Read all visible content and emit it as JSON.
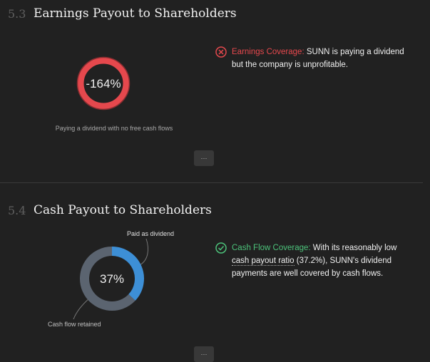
{
  "sections": [
    {
      "number": "5.3",
      "title": "Earnings Payout to Shareholders",
      "ratio": {
        "value": -164,
        "label": "-164%"
      },
      "caption": "Paying a dividend with no free cash flows",
      "button": "···",
      "status": {
        "label": "Earnings Coverage:",
        "text": "SUNN is paying a dividend but the company is unprofitable."
      }
    },
    {
      "number": "5.4",
      "title": "Cash Payout to Shareholders",
      "ratio": {
        "value": 37,
        "label": "37%"
      },
      "paid_label": "Paid as dividend",
      "retained_label": "Cash flow retained",
      "button": "···",
      "status": {
        "label": "Cash Flow Coverage:",
        "text_before": "With its reasonably low",
        "link": "cash payout ratio",
        "text_after": "(37.2%), SUNN's dividend payments are well covered by cash flows."
      }
    }
  ]
}
